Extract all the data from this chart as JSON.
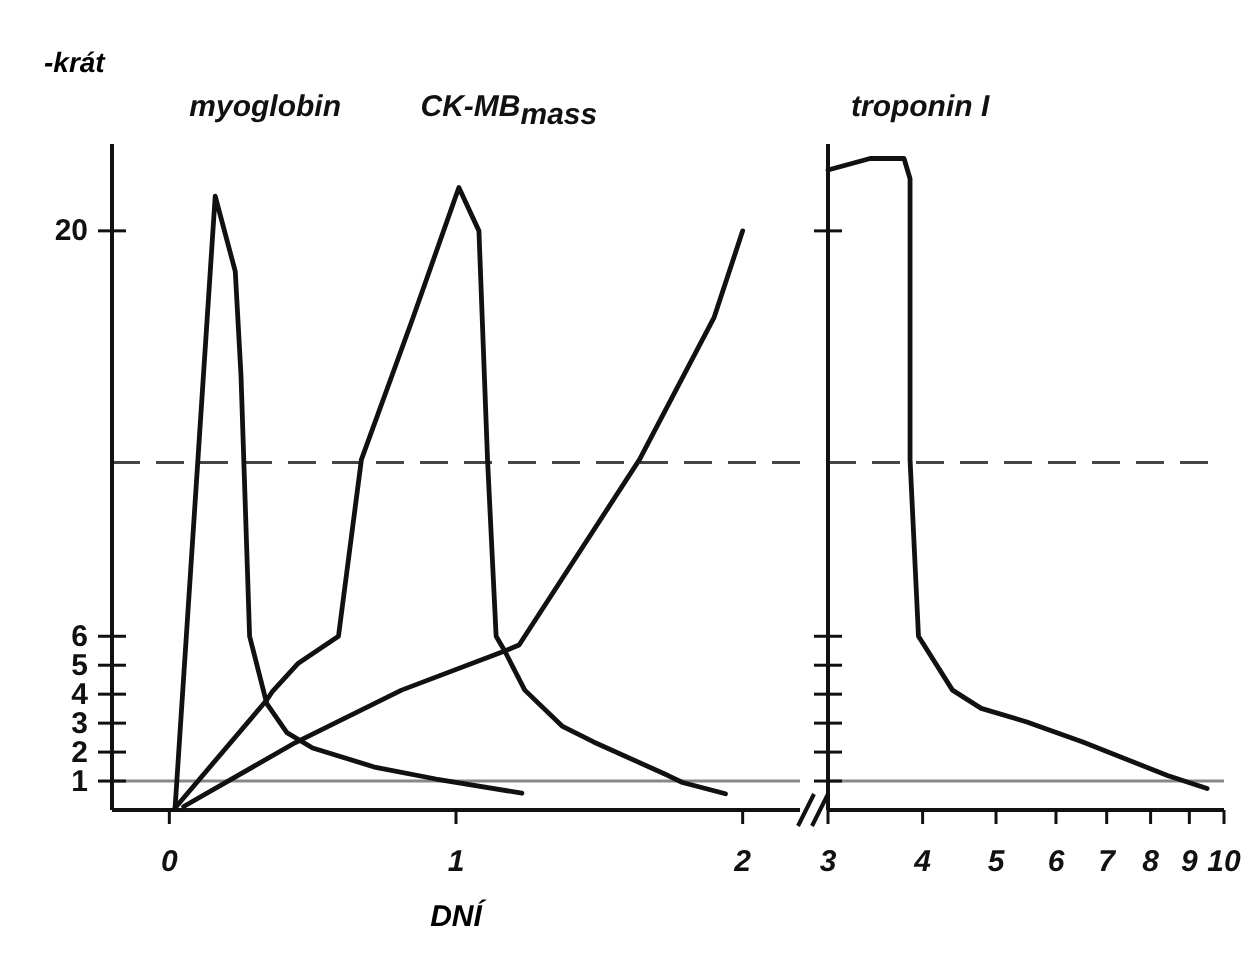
{
  "chart_data": [
    {
      "type": "line",
      "xlabel": "DNÍ",
      "ylabel": "-krát",
      "xlim": [
        -0.2,
        2.2
      ],
      "xticks": [
        0,
        1,
        2
      ],
      "ylim": [
        0,
        23
      ],
      "yticks": [
        1,
        2,
        3,
        4,
        5,
        6,
        20
      ],
      "line_style": "solid",
      "ref_lines": [
        {
          "axis": "y",
          "value": 1,
          "color": "#888888",
          "line_style": "solid"
        },
        {
          "axis": "y",
          "value": 12,
          "color": "#444444",
          "line_style": "dashed"
        }
      ],
      "series": [
        {
          "name": "myoglobin",
          "color": "#111111",
          "x": [
            0.02,
            0.16,
            0.23,
            0.25,
            0.28,
            0.34,
            0.41,
            0.5,
            0.72,
            0.93,
            1.23
          ],
          "values": [
            0.07,
            21.2,
            18.6,
            15,
            6,
            3.67,
            2.67,
            2.14,
            1.47,
            1.07,
            0.58
          ]
        },
        {
          "name": "CK-MB$_{mass}$",
          "color": "#111111",
          "x": [
            0.02,
            0.34,
            0.36,
            0.45,
            0.59,
            0.67,
            0.85,
            1.01,
            1.08,
            1.11,
            1.14,
            1.17,
            1.24,
            1.37,
            1.48,
            1.74,
            1.79,
            1.94
          ],
          "values": [
            0.07,
            3.8,
            4.1,
            5.07,
            6,
            12.1,
            17,
            21.5,
            20,
            12.1,
            6,
            5.49,
            4.14,
            2.9,
            2.35,
            1.19,
            0.95,
            0.56
          ]
        },
        {
          "color": "#111111",
          "x": [
            0.05,
            0.44,
            0.81,
            1.17,
            1.22,
            1.64,
            1.9,
            2.0
          ],
          "values": [
            0.12,
            2.33,
            4.14,
            5.49,
            5.7,
            12.1,
            17,
            20
          ]
        }
      ]
    },
    {
      "type": "line",
      "log": "x",
      "tick_labels": "x",
      "xlim": [
        3,
        10
      ],
      "xticks": [
        3,
        4,
        5,
        6,
        7,
        8,
        9,
        10
      ],
      "ylim": [
        0,
        23
      ],
      "yticks": [
        1,
        2,
        3,
        4,
        5,
        6,
        20
      ],
      "line_style": "solid",
      "ref_lines": [
        {
          "axis": "y",
          "value": 1,
          "color": "#888888",
          "line_style": "solid"
        },
        {
          "axis": "y",
          "value": 12,
          "color": "#444444",
          "line_style": "dashed"
        }
      ],
      "series": [
        {
          "name": "troponin I",
          "color": "#111111",
          "x": [
            3,
            3.41,
            3.78,
            3.85,
            3.85,
            3.95,
            4.38,
            4.78,
            5.48,
            6.51,
            8.42,
            9.5
          ],
          "values": [
            22.1,
            22.5,
            22.5,
            21.8,
            12.1,
            6,
            4.14,
            3.51,
            3.05,
            2.35,
            1.19,
            0.74
          ]
        }
      ]
    }
  ]
}
